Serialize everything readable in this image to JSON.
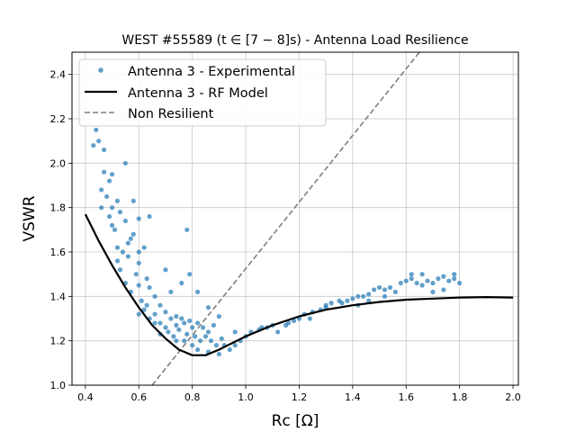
{
  "chart_data": {
    "type": "scatter",
    "title": "WEST #55589 (t ∈ [7 − 8]s) - Antenna Load Resilience",
    "xlabel": "Rc [Ω]",
    "ylabel": "VSWR",
    "xlim": [
      0.35,
      2.02
    ],
    "ylim": [
      1.0,
      2.5
    ],
    "xticks": [
      "0.4",
      "0.6",
      "0.8",
      "1.0",
      "1.2",
      "1.4",
      "1.6",
      "1.8",
      "2.0"
    ],
    "yticks": [
      "1.0",
      "1.2",
      "1.4",
      "1.6",
      "1.8",
      "2.0",
      "2.2",
      "2.4"
    ],
    "grid": true,
    "legend_position": "top-left",
    "series": [
      {
        "name": "Antenna 3 - Experimental",
        "kind": "scatter",
        "color": "#1f77b4",
        "points": [
          [
            0.44,
            2.15
          ],
          [
            0.43,
            2.08
          ],
          [
            0.45,
            2.1
          ],
          [
            0.47,
            2.06
          ],
          [
            0.47,
            1.96
          ],
          [
            0.49,
            1.92
          ],
          [
            0.5,
            1.95
          ],
          [
            0.55,
            2.0
          ],
          [
            0.46,
            1.88
          ],
          [
            0.48,
            1.85
          ],
          [
            0.52,
            1.83
          ],
          [
            0.5,
            1.8
          ],
          [
            0.53,
            1.78
          ],
          [
            0.58,
            1.83
          ],
          [
            0.55,
            1.74
          ],
          [
            0.6,
            1.75
          ],
          [
            0.64,
            1.76
          ],
          [
            0.5,
            1.72
          ],
          [
            0.58,
            1.68
          ],
          [
            0.56,
            1.64
          ],
          [
            0.6,
            1.6
          ],
          [
            0.62,
            1.62
          ],
          [
            0.56,
            1.58
          ],
          [
            0.6,
            1.55
          ],
          [
            0.59,
            1.5
          ],
          [
            0.63,
            1.48
          ],
          [
            0.6,
            1.45
          ],
          [
            0.64,
            1.44
          ],
          [
            0.66,
            1.4
          ],
          [
            0.61,
            1.38
          ],
          [
            0.63,
            1.36
          ],
          [
            0.68,
            1.36
          ],
          [
            0.6,
            1.32
          ],
          [
            0.66,
            1.32
          ],
          [
            0.7,
            1.33
          ],
          [
            0.74,
            1.31
          ],
          [
            0.78,
            1.7
          ],
          [
            0.7,
            1.52
          ],
          [
            0.76,
            1.46
          ],
          [
            0.79,
            1.5
          ],
          [
            0.72,
            1.42
          ],
          [
            0.82,
            1.42
          ],
          [
            0.86,
            1.35
          ],
          [
            0.64,
            1.3
          ],
          [
            0.68,
            1.28
          ],
          [
            0.72,
            1.3
          ],
          [
            0.74,
            1.27
          ],
          [
            0.76,
            1.3
          ],
          [
            0.77,
            1.28
          ],
          [
            0.79,
            1.29
          ],
          [
            0.8,
            1.26
          ],
          [
            0.82,
            1.28
          ],
          [
            0.84,
            1.26
          ],
          [
            0.86,
            1.24
          ],
          [
            0.88,
            1.27
          ],
          [
            0.9,
            1.31
          ],
          [
            0.71,
            1.24
          ],
          [
            0.73,
            1.22
          ],
          [
            0.75,
            1.25
          ],
          [
            0.78,
            1.23
          ],
          [
            0.81,
            1.22
          ],
          [
            0.83,
            1.2
          ],
          [
            0.85,
            1.22
          ],
          [
            0.87,
            1.2
          ],
          [
            0.89,
            1.18
          ],
          [
            0.91,
            1.21
          ],
          [
            0.92,
            1.18
          ],
          [
            0.94,
            1.16
          ],
          [
            0.96,
            1.18
          ],
          [
            0.98,
            1.2
          ],
          [
            1.0,
            1.22
          ],
          [
            1.02,
            1.24
          ],
          [
            1.05,
            1.25
          ],
          [
            1.08,
            1.26
          ],
          [
            1.1,
            1.27
          ],
          [
            1.12,
            1.24
          ],
          [
            1.15,
            1.27
          ],
          [
            1.18,
            1.29
          ],
          [
            1.2,
            1.3
          ],
          [
            1.22,
            1.32
          ],
          [
            1.25,
            1.33
          ],
          [
            1.28,
            1.34
          ],
          [
            1.3,
            1.36
          ],
          [
            1.32,
            1.37
          ],
          [
            1.35,
            1.38
          ],
          [
            1.38,
            1.38
          ],
          [
            1.4,
            1.39
          ],
          [
            1.42,
            1.4
          ],
          [
            1.44,
            1.4
          ],
          [
            1.46,
            1.41
          ],
          [
            1.48,
            1.43
          ],
          [
            1.5,
            1.44
          ],
          [
            1.52,
            1.43
          ],
          [
            1.54,
            1.44
          ],
          [
            1.56,
            1.42
          ],
          [
            1.58,
            1.46
          ],
          [
            1.6,
            1.47
          ],
          [
            1.62,
            1.48
          ],
          [
            1.64,
            1.46
          ],
          [
            1.66,
            1.45
          ],
          [
            1.68,
            1.47
          ],
          [
            1.7,
            1.46
          ],
          [
            1.72,
            1.48
          ],
          [
            1.74,
            1.49
          ],
          [
            1.76,
            1.47
          ],
          [
            1.78,
            1.48
          ],
          [
            1.8,
            1.46
          ],
          [
            1.62,
            1.5
          ],
          [
            1.66,
            1.5
          ],
          [
            1.7,
            1.42
          ],
          [
            1.74,
            1.43
          ],
          [
            1.78,
            1.5
          ],
          [
            1.52,
            1.4
          ],
          [
            1.46,
            1.38
          ],
          [
            1.42,
            1.36
          ],
          [
            1.36,
            1.37
          ],
          [
            1.3,
            1.35
          ],
          [
            1.24,
            1.3
          ],
          [
            1.16,
            1.28
          ],
          [
            1.06,
            1.26
          ],
          [
            0.96,
            1.24
          ],
          [
            0.9,
            1.14
          ],
          [
            0.86,
            1.15
          ],
          [
            0.82,
            1.16
          ],
          [
            0.8,
            1.18
          ],
          [
            0.77,
            1.2
          ],
          [
            0.74,
            1.2
          ],
          [
            0.7,
            1.26
          ],
          [
            0.68,
            1.23
          ],
          [
            0.66,
            1.28
          ],
          [
            0.62,
            1.34
          ],
          [
            0.57,
            1.42
          ],
          [
            0.55,
            1.46
          ],
          [
            0.53,
            1.52
          ],
          [
            0.52,
            1.56
          ],
          [
            0.54,
            1.6
          ],
          [
            0.57,
            1.66
          ],
          [
            0.51,
            1.7
          ],
          [
            0.49,
            1.76
          ],
          [
            0.46,
            1.8
          ],
          [
            0.52,
            1.62
          ]
        ]
      },
      {
        "name": "Antenna 3 - RF Model",
        "kind": "line",
        "color": "#000000",
        "points": [
          [
            0.4,
            1.77
          ],
          [
            0.45,
            1.65
          ],
          [
            0.5,
            1.54
          ],
          [
            0.55,
            1.44
          ],
          [
            0.6,
            1.35
          ],
          [
            0.65,
            1.27
          ],
          [
            0.7,
            1.21
          ],
          [
            0.75,
            1.16
          ],
          [
            0.8,
            1.135
          ],
          [
            0.85,
            1.135
          ],
          [
            0.9,
            1.16
          ],
          [
            0.95,
            1.19
          ],
          [
            1.0,
            1.22
          ],
          [
            1.1,
            1.27
          ],
          [
            1.2,
            1.31
          ],
          [
            1.3,
            1.34
          ],
          [
            1.4,
            1.36
          ],
          [
            1.5,
            1.375
          ],
          [
            1.6,
            1.385
          ],
          [
            1.7,
            1.39
          ],
          [
            1.8,
            1.395
          ],
          [
            1.9,
            1.397
          ],
          [
            2.0,
            1.395
          ]
        ]
      },
      {
        "name": "Non Resilient",
        "kind": "dashed-line",
        "color": "#7f7f7f",
        "points": [
          [
            0.65,
            1.0
          ],
          [
            1.65,
            2.5
          ]
        ]
      }
    ]
  }
}
